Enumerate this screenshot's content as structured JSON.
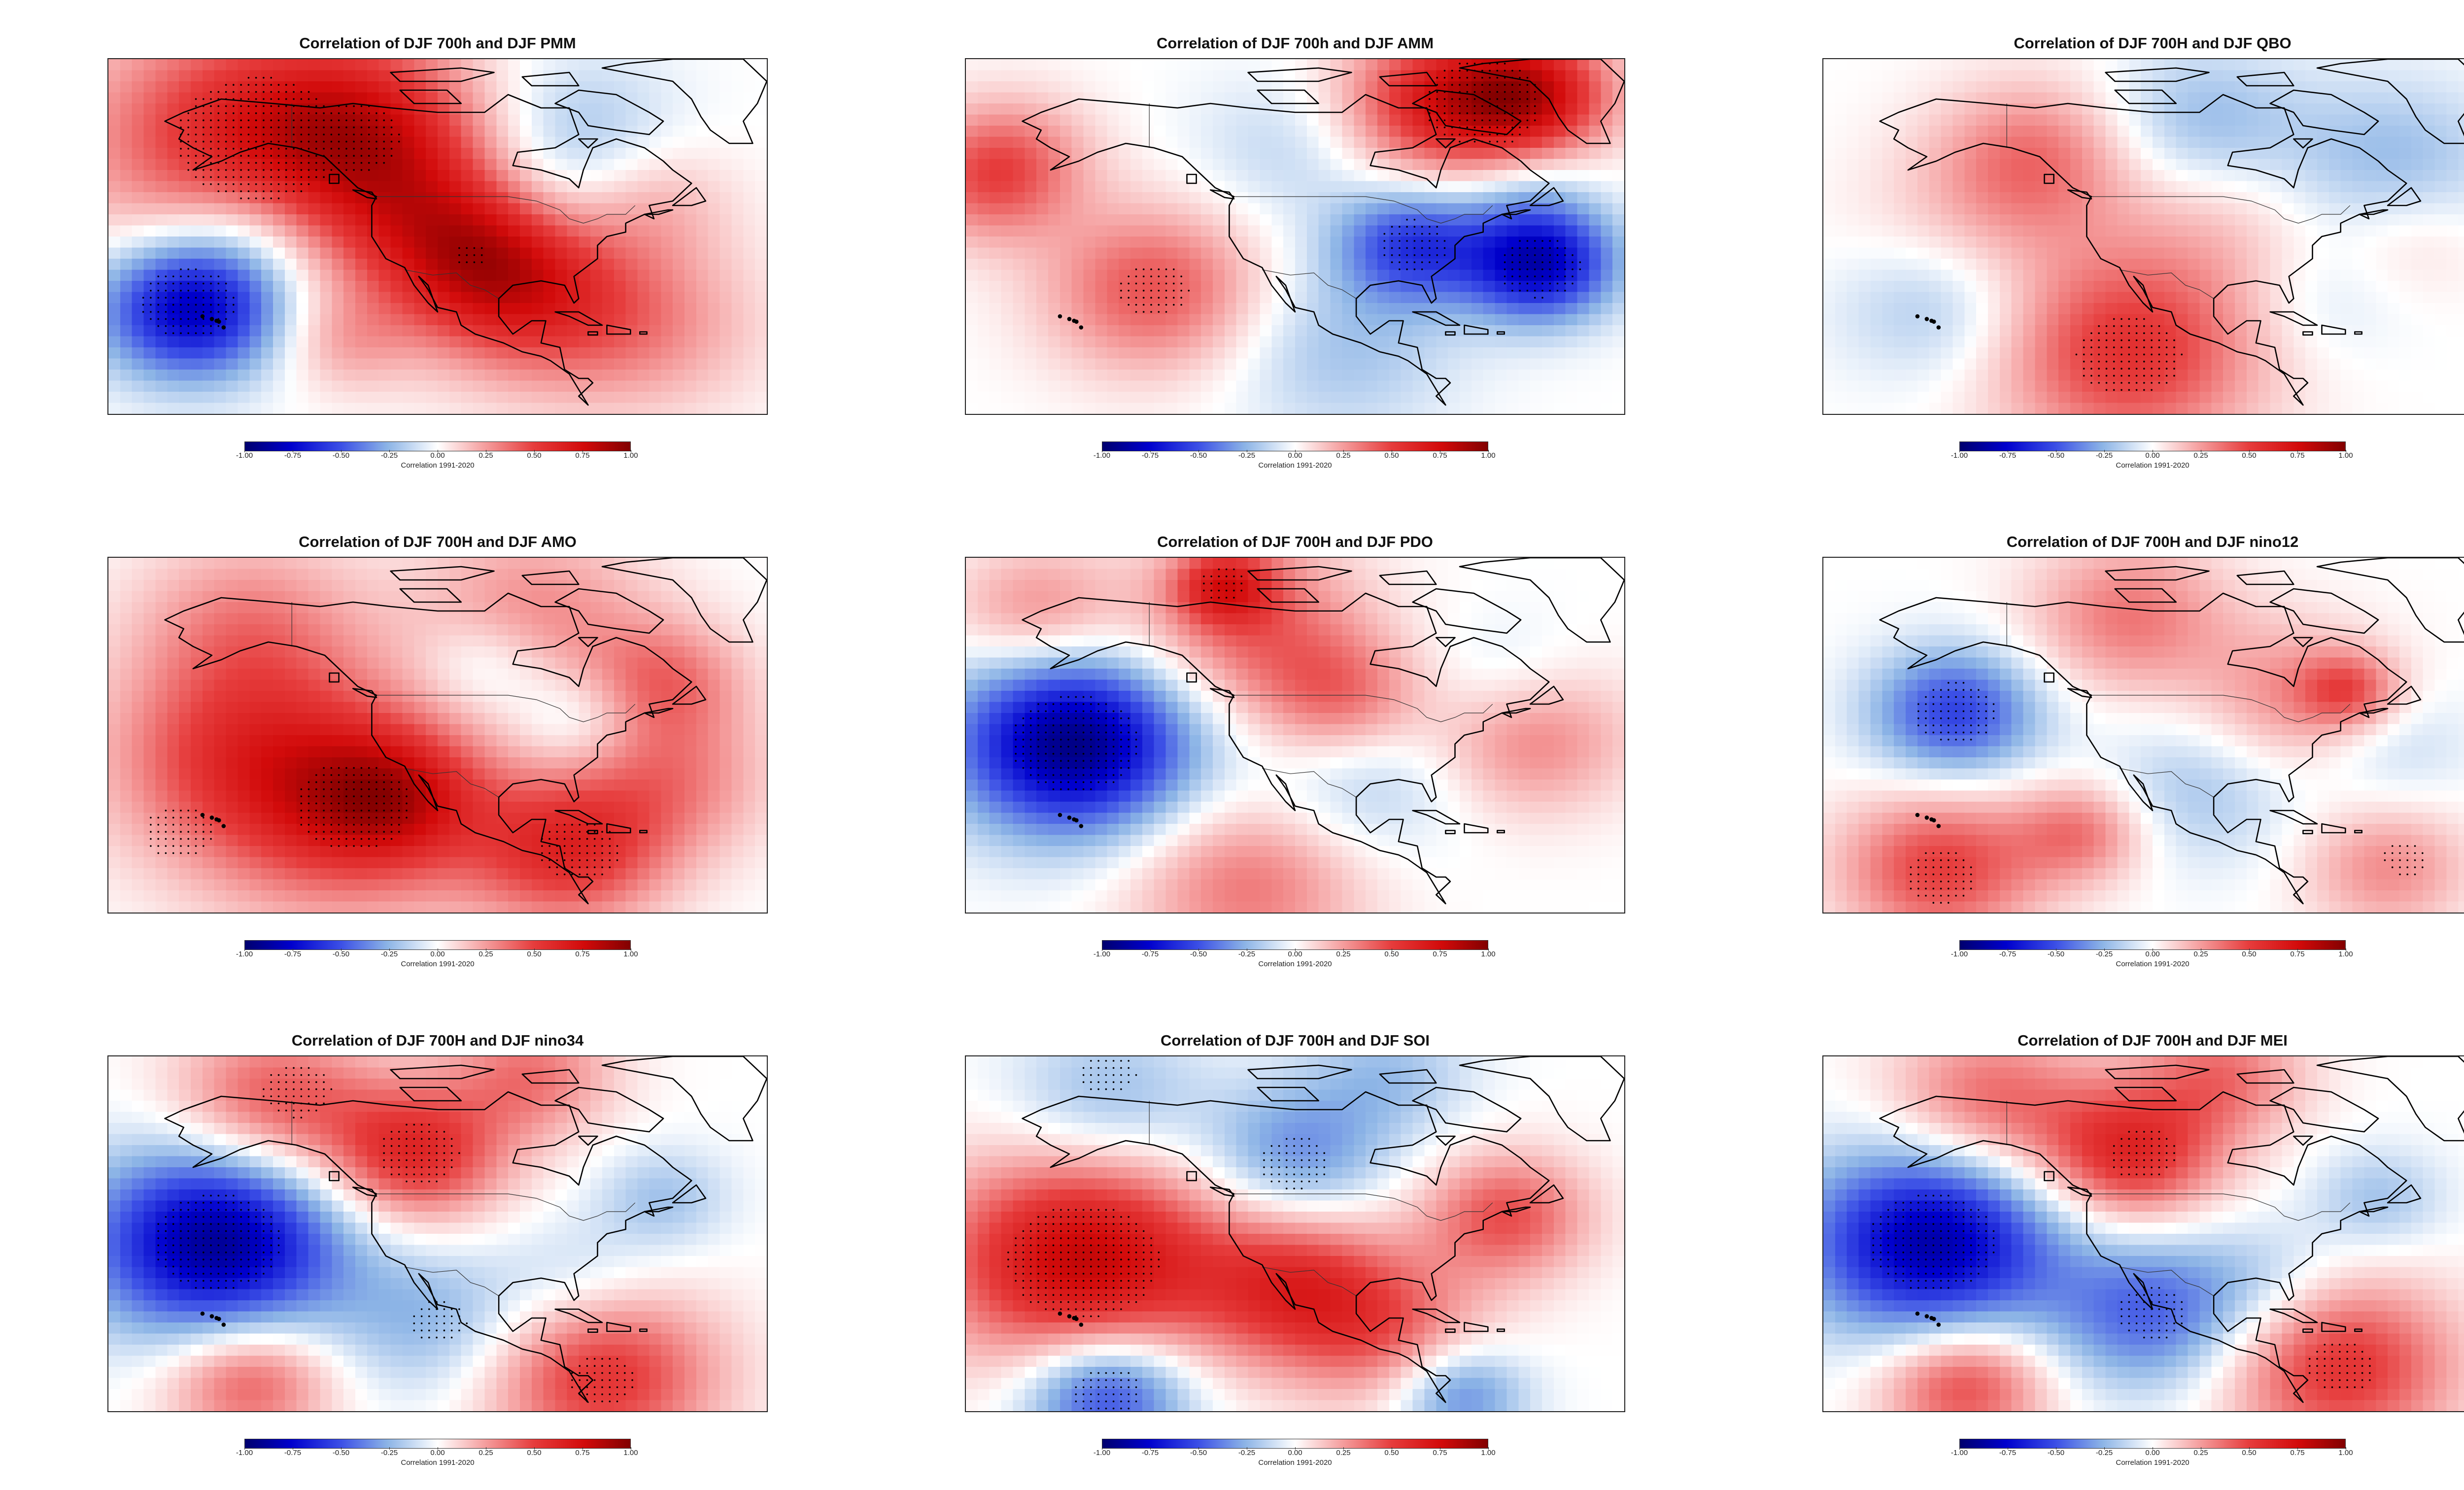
{
  "colorbar": {
    "ticks": [
      "-1.00",
      "-0.75",
      "-0.50",
      "-0.25",
      "0.00",
      "0.25",
      "0.50",
      "0.75",
      "1.00"
    ],
    "label": "Correlation 1991-2020"
  },
  "colors": {
    "negative_strong": "#0000cd",
    "neutral": "#ffffff",
    "positive_strong": "#d20a0a",
    "coastline": "#000000",
    "stipple": "#000000"
  },
  "panels": [
    {
      "title": "Correlation of DJF 700h and DJF PMM",
      "blobs": [
        {
          "lat": 62,
          "lon": -150,
          "r": 20,
          "v": 0.6
        },
        {
          "lat": 64,
          "lon": -125,
          "r": 14,
          "v": 0.45
        },
        {
          "lat": 44,
          "lon": -110,
          "r": 14,
          "v": 0.35
        },
        {
          "lat": 35,
          "lon": -100,
          "r": 12,
          "v": 0.4
        },
        {
          "lat": 26,
          "lon": -90,
          "r": 14,
          "v": 0.4
        },
        {
          "lat": 48,
          "lon": -65,
          "r": 10,
          "v": 0.2
        },
        {
          "lat": 20,
          "lon": -65,
          "r": 14,
          "v": 0.25
        },
        {
          "lat": 50,
          "lon": -85,
          "r": 12,
          "v": -0.2
        },
        {
          "lat": 66,
          "lon": -80,
          "r": 12,
          "v": -0.15
        },
        {
          "lat": 42,
          "lon": -150,
          "r": 10,
          "v": -0.2
        },
        {
          "lat": 24,
          "lon": -162,
          "r": 11,
          "v": -0.85
        },
        {
          "lat": 16,
          "lon": -130,
          "r": 8,
          "v": 0.2
        }
      ],
      "stipple": [
        {
          "lat": 62,
          "lon": -148,
          "r": 14
        },
        {
          "lat": 62,
          "lon": -128,
          "r": 8
        },
        {
          "lat": 25,
          "lon": -163,
          "r": 8
        },
        {
          "lat": 36,
          "lon": -103,
          "r": 3
        }
      ]
    },
    {
      "title": "Correlation of DJF 700h and DJF AMM",
      "blobs": [
        {
          "lat": 70,
          "lon": -80,
          "r": 12,
          "v": 0.6
        },
        {
          "lat": 72,
          "lon": -60,
          "r": 10,
          "v": 0.7
        },
        {
          "lat": 60,
          "lon": -170,
          "r": 10,
          "v": 0.2
        },
        {
          "lat": 52,
          "lon": -175,
          "r": 10,
          "v": 0.35
        },
        {
          "lat": 28,
          "lon": -140,
          "r": 13,
          "v": 0.45
        },
        {
          "lat": 38,
          "lon": -85,
          "r": 9,
          "v": -0.55
        },
        {
          "lat": 34,
          "lon": -58,
          "r": 9,
          "v": -0.8
        },
        {
          "lat": 60,
          "lon": -110,
          "r": 12,
          "v": -0.15
        },
        {
          "lat": 15,
          "lon": -100,
          "r": 14,
          "v": -0.2
        },
        {
          "lat": 50,
          "lon": -60,
          "r": 8,
          "v": -0.15
        }
      ],
      "stipple": [
        {
          "lat": 70,
          "lon": -70,
          "r": 10
        },
        {
          "lat": 38,
          "lon": -85,
          "r": 6
        },
        {
          "lat": 33,
          "lon": -58,
          "r": 7
        },
        {
          "lat": 28,
          "lon": -140,
          "r": 6
        }
      ]
    },
    {
      "title": "Correlation of DJF 700H and DJF QBO",
      "blobs": [
        {
          "lat": 58,
          "lon": -135,
          "r": 12,
          "v": 0.35
        },
        {
          "lat": 14,
          "lon": -115,
          "r": 16,
          "v": 0.55
        },
        {
          "lat": 40,
          "lon": -150,
          "r": 14,
          "v": 0.15
        },
        {
          "lat": 45,
          "lon": -95,
          "r": 14,
          "v": 0.15
        },
        {
          "lat": 65,
          "lon": -100,
          "r": 12,
          "v": -0.25
        },
        {
          "lat": 55,
          "lon": -60,
          "r": 14,
          "v": -0.25
        },
        {
          "lat": 25,
          "lon": -155,
          "r": 12,
          "v": -0.25
        },
        {
          "lat": 25,
          "lon": -75,
          "r": 10,
          "v": -0.1
        },
        {
          "lat": 40,
          "lon": -55,
          "r": 10,
          "v": 0.15
        }
      ],
      "stipple": [
        {
          "lat": 13,
          "lon": -115,
          "r": 9
        }
      ]
    },
    {
      "title": "Correlation of DJF 700H and DJF AMO",
      "blobs": [
        {
          "lat": 25,
          "lon": -130,
          "r": 18,
          "v": 0.55
        },
        {
          "lat": 26,
          "lon": -120,
          "r": 10,
          "v": 0.4
        },
        {
          "lat": 14,
          "lon": -82,
          "r": 12,
          "v": 0.55
        },
        {
          "lat": 36,
          "lon": -155,
          "r": 16,
          "v": 0.35
        },
        {
          "lat": 65,
          "lon": -150,
          "r": 14,
          "v": 0.3
        },
        {
          "lat": 68,
          "lon": -90,
          "r": 14,
          "v": 0.3
        },
        {
          "lat": 56,
          "lon": -100,
          "r": 8,
          "v": -0.2
        },
        {
          "lat": 44,
          "lon": -80,
          "r": 8,
          "v": -0.2
        },
        {
          "lat": 52,
          "lon": -62,
          "r": 10,
          "v": 0.35
        },
        {
          "lat": 30,
          "lon": -60,
          "r": 12,
          "v": 0.3
        }
      ],
      "stipple": [
        {
          "lat": 24,
          "lon": -128,
          "r": 10
        },
        {
          "lat": 14,
          "lon": -80,
          "r": 7
        },
        {
          "lat": 18,
          "lon": -165,
          "r": 6
        }
      ]
    },
    {
      "title": "Correlation of DJF 700H and DJF PDO",
      "blobs": [
        {
          "lat": 38,
          "lon": -157,
          "r": 14,
          "v": -0.95
        },
        {
          "lat": 65,
          "lon": -120,
          "r": 14,
          "v": 0.4
        },
        {
          "lat": 74,
          "lon": -125,
          "r": 6,
          "v": 0.45
        },
        {
          "lat": 48,
          "lon": -100,
          "r": 10,
          "v": 0.35
        },
        {
          "lat": 30,
          "lon": -95,
          "r": 12,
          "v": -0.2
        },
        {
          "lat": 52,
          "lon": -65,
          "r": 10,
          "v": -0.15
        },
        {
          "lat": 40,
          "lon": -60,
          "r": 12,
          "v": 0.35
        },
        {
          "lat": 6,
          "lon": -120,
          "r": 14,
          "v": 0.35
        },
        {
          "lat": 68,
          "lon": -165,
          "r": 10,
          "v": 0.3
        }
      ],
      "stipple": [
        {
          "lat": 38,
          "lon": -157,
          "r": 11
        },
        {
          "lat": 74,
          "lon": -125,
          "r": 4
        }
      ]
    },
    {
      "title": "Correlation of DJF 700H and DJF nino12",
      "blobs": [
        {
          "lat": 45,
          "lon": -152,
          "r": 10,
          "v": -0.55
        },
        {
          "lat": 67,
          "lon": -115,
          "r": 12,
          "v": 0.35
        },
        {
          "lat": 48,
          "lon": -80,
          "r": 12,
          "v": 0.3
        },
        {
          "lat": 50,
          "lon": -68,
          "r": 6,
          "v": 0.35
        },
        {
          "lat": 10,
          "lon": -155,
          "r": 12,
          "v": 0.5
        },
        {
          "lat": 18,
          "lon": -125,
          "r": 8,
          "v": 0.35
        },
        {
          "lat": 10,
          "lon": -60,
          "r": 10,
          "v": 0.3
        },
        {
          "lat": 28,
          "lon": -100,
          "r": 12,
          "v": -0.2
        },
        {
          "lat": 38,
          "lon": -60,
          "r": 10,
          "v": -0.15
        }
      ],
      "stipple": [
        {
          "lat": 45,
          "lon": -152,
          "r": 7
        },
        {
          "lat": 8,
          "lon": -155,
          "r": 6
        },
        {
          "lat": 12,
          "lon": -56,
          "r": 4
        }
      ]
    },
    {
      "title": "Correlation of DJF 700H and DJF nino34",
      "blobs": [
        {
          "lat": 38,
          "lon": -157,
          "r": 15,
          "v": -0.9
        },
        {
          "lat": 58,
          "lon": -115,
          "r": 11,
          "v": 0.6
        },
        {
          "lat": 70,
          "lon": -145,
          "r": 12,
          "v": 0.45
        },
        {
          "lat": 76,
          "lon": -90,
          "r": 10,
          "v": 0.35
        },
        {
          "lat": 20,
          "lon": -110,
          "r": 12,
          "v": -0.25
        },
        {
          "lat": 48,
          "lon": -62,
          "r": 8,
          "v": -0.2
        },
        {
          "lat": 8,
          "lon": -75,
          "r": 14,
          "v": 0.55
        },
        {
          "lat": 7,
          "lon": -150,
          "r": 10,
          "v": 0.45
        },
        {
          "lat": 30,
          "lon": -80,
          "r": 10,
          "v": -0.15
        }
      ],
      "stipple": [
        {
          "lat": 38,
          "lon": -157,
          "r": 11
        },
        {
          "lat": 58,
          "lon": -114,
          "r": 7
        },
        {
          "lat": 20,
          "lon": -110,
          "r": 5
        },
        {
          "lat": 7,
          "lon": -75,
          "r": 6
        },
        {
          "lat": 72,
          "lon": -140,
          "r": 6
        }
      ]
    },
    {
      "title": "Correlation of DJF 700H and DJF SOI",
      "blobs": [
        {
          "lat": 34,
          "lon": -155,
          "r": 17,
          "v": 0.8
        },
        {
          "lat": 58,
          "lon": -110,
          "r": 11,
          "v": -0.35
        },
        {
          "lat": 70,
          "lon": -150,
          "r": 12,
          "v": -0.25
        },
        {
          "lat": 76,
          "lon": -90,
          "r": 10,
          "v": -0.2
        },
        {
          "lat": 28,
          "lon": -110,
          "r": 12,
          "v": 0.5
        },
        {
          "lat": 44,
          "lon": -65,
          "r": 10,
          "v": 0.45
        },
        {
          "lat": 18,
          "lon": -90,
          "r": 12,
          "v": 0.35
        },
        {
          "lat": 4,
          "lon": -150,
          "r": 10,
          "v": -0.6
        },
        {
          "lat": 4,
          "lon": -75,
          "r": 8,
          "v": -0.4
        }
      ],
      "stipple": [
        {
          "lat": 34,
          "lon": -155,
          "r": 13
        },
        {
          "lat": 56,
          "lon": -110,
          "r": 6
        },
        {
          "lat": 4,
          "lon": -150,
          "r": 6
        },
        {
          "lat": 76,
          "lon": -150,
          "r": 5
        }
      ]
    },
    {
      "title": "Correlation of DJF 700H and DJF MEI",
      "blobs": [
        {
          "lat": 38,
          "lon": -157,
          "r": 15,
          "v": -0.85
        },
        {
          "lat": 58,
          "lon": -115,
          "r": 11,
          "v": 0.6
        },
        {
          "lat": 70,
          "lon": -145,
          "r": 12,
          "v": 0.4
        },
        {
          "lat": 76,
          "lon": -95,
          "r": 10,
          "v": 0.35
        },
        {
          "lat": 22,
          "lon": -110,
          "r": 12,
          "v": -0.45
        },
        {
          "lat": 48,
          "lon": -62,
          "r": 8,
          "v": -0.2
        },
        {
          "lat": 10,
          "lon": -70,
          "r": 14,
          "v": 0.55
        },
        {
          "lat": 6,
          "lon": -150,
          "r": 10,
          "v": 0.5
        },
        {
          "lat": 30,
          "lon": -85,
          "r": 10,
          "v": -0.15
        }
      ],
      "stipple": [
        {
          "lat": 38,
          "lon": -157,
          "r": 11
        },
        {
          "lat": 58,
          "lon": -112,
          "r": 6
        },
        {
          "lat": 22,
          "lon": -110,
          "r": 6
        },
        {
          "lat": 10,
          "lon": -70,
          "r": 6
        }
      ]
    }
  ]
}
